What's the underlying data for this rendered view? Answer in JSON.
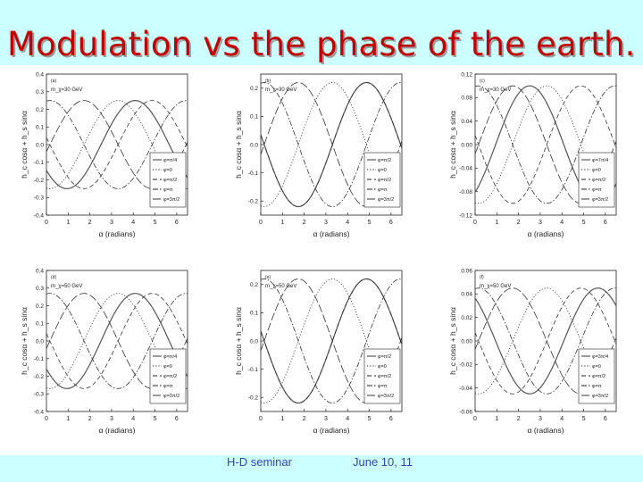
{
  "title": "Modulation vs the phase of the earth.",
  "footer": {
    "seminar": "H-D seminar",
    "date": "June 10, 11"
  },
  "chart_data": [
    {
      "type": "line",
      "panel_tag": "(a)",
      "mass_label": "m_χ=30 GeV",
      "xlabel": "α (radians)",
      "ylabel": "h_c cosα + h_s sinα",
      "xlim": [
        0,
        6.5
      ],
      "xticks": [
        0,
        1,
        2,
        3,
        4,
        5,
        6
      ],
      "ylim": [
        -0.4,
        0.4
      ],
      "yticks": [
        -0.4,
        -0.3,
        -0.2,
        -0.1,
        0.0,
        0.1,
        0.2,
        0.3,
        0.4
      ],
      "amplitude": 0.25,
      "legend_loc": "right",
      "series": [
        {
          "name": "φ=π/4",
          "phase": 0.785,
          "style": "solid"
        },
        {
          "name": "φ=0",
          "phase": 0,
          "style": "dotted"
        },
        {
          "name": "φ=π/2",
          "phase": 1.571,
          "style": "dashed"
        },
        {
          "name": "φ=π",
          "phase": 3.142,
          "style": "dash-dot"
        },
        {
          "name": "φ=3π/2",
          "phase": 4.712,
          "style": "long-dash"
        }
      ]
    },
    {
      "type": "line",
      "panel_tag": "(b)",
      "mass_label": "m_χ=30 GeV",
      "xlabel": "α (radians)",
      "ylabel": "h_c cosα + h_s sinα",
      "xlim": [
        0,
        6.5
      ],
      "xticks": [
        0,
        1,
        2,
        3,
        4,
        5,
        6
      ],
      "ylim": [
        -0.25,
        0.25
      ],
      "yticks": [
        -0.2,
        -0.1,
        0.0,
        0.1,
        0.2
      ],
      "amplitude": 0.22,
      "legend_loc": "right",
      "series": [
        {
          "name": "φ=π/2",
          "phase": 1.571,
          "style": "solid"
        },
        {
          "name": "φ=0",
          "phase": 0,
          "style": "dotted"
        },
        {
          "name": "φ=π/2",
          "phase": 1.571,
          "style": "dashed"
        },
        {
          "name": "φ=π",
          "phase": 3.142,
          "style": "dash-dot"
        },
        {
          "name": "φ=3π/2",
          "phase": 4.712,
          "style": "long-dash"
        }
      ]
    },
    {
      "type": "line",
      "panel_tag": "(c)",
      "mass_label": "m_χ=30 GeV",
      "xlabel": "α (radians)",
      "ylabel": "h_c cosα + h_s sinα",
      "xlim": [
        0,
        6.5
      ],
      "xticks": [
        0,
        1,
        2,
        3,
        4,
        5,
        6
      ],
      "ylim": [
        -0.12,
        0.12
      ],
      "yticks": [
        -0.12,
        -0.08,
        -0.04,
        0.0,
        0.04,
        0.08,
        0.12
      ],
      "amplitude": 0.1,
      "legend_loc": "right",
      "series": [
        {
          "name": "φ=7π/4",
          "phase": 5.498,
          "style": "solid"
        },
        {
          "name": "φ=0",
          "phase": 0,
          "style": "dotted"
        },
        {
          "name": "φ=π/2",
          "phase": 1.571,
          "style": "dashed"
        },
        {
          "name": "φ=π",
          "phase": 3.142,
          "style": "dash-dot"
        },
        {
          "name": "φ=3π/2",
          "phase": 4.712,
          "style": "long-dash"
        }
      ]
    },
    {
      "type": "line",
      "panel_tag": "(d)",
      "mass_label": "m_χ=50 GeV",
      "xlabel": "α (radians)",
      "ylabel": "h_c cosα + h_s sinα",
      "xlim": [
        0,
        6.5
      ],
      "xticks": [
        0,
        1,
        2,
        3,
        4,
        5,
        6
      ],
      "ylim": [
        -0.4,
        0.4
      ],
      "yticks": [
        -0.4,
        -0.3,
        -0.2,
        -0.1,
        0.0,
        0.1,
        0.2,
        0.3,
        0.4
      ],
      "amplitude": 0.27,
      "legend_loc": "right",
      "series": [
        {
          "name": "φ=π/4",
          "phase": 0.785,
          "style": "solid"
        },
        {
          "name": "φ=0",
          "phase": 0,
          "style": "dotted"
        },
        {
          "name": "φ=π/2",
          "phase": 1.571,
          "style": "dashed"
        },
        {
          "name": "φ=π",
          "phase": 3.142,
          "style": "dash-dot"
        },
        {
          "name": "φ=3π/2",
          "phase": 4.712,
          "style": "long-dash"
        }
      ]
    },
    {
      "type": "line",
      "panel_tag": "(e)",
      "mass_label": "m_χ=50 GeV",
      "xlabel": "α (radians)",
      "ylabel": "h_c cosα + h_s sinα",
      "xlim": [
        0,
        6.5
      ],
      "xticks": [
        0,
        1,
        2,
        3,
        4,
        5,
        6
      ],
      "ylim": [
        -0.25,
        0.25
      ],
      "yticks": [
        -0.2,
        -0.1,
        0.0,
        0.1,
        0.2
      ],
      "amplitude": 0.22,
      "legend_loc": "right",
      "series": [
        {
          "name": "φ=π/2",
          "phase": 1.571,
          "style": "solid"
        },
        {
          "name": "φ=0",
          "phase": 0,
          "style": "dotted"
        },
        {
          "name": "φ=π/2",
          "phase": 1.571,
          "style": "dashed"
        },
        {
          "name": "φ=π",
          "phase": 3.142,
          "style": "dash-dot"
        },
        {
          "name": "φ=3π/2",
          "phase": 4.712,
          "style": "long-dash"
        }
      ]
    },
    {
      "type": "line",
      "panel_tag": "(f)",
      "mass_label": "m_χ=50 GeV",
      "xlabel": "α (radians)",
      "ylabel": "h_c cosα + h_s sinα",
      "xlim": [
        0,
        6.5
      ],
      "xticks": [
        0,
        1,
        2,
        3,
        4,
        5,
        6
      ],
      "ylim": [
        -0.06,
        0.06
      ],
      "yticks": [
        -0.06,
        -0.04,
        -0.02,
        0.0,
        0.02,
        0.04,
        0.06
      ],
      "amplitude": 0.045,
      "legend_loc": "right",
      "series": [
        {
          "name": "φ=3π/4",
          "phase": 2.356,
          "style": "solid"
        },
        {
          "name": "φ=0",
          "phase": 0,
          "style": "dotted"
        },
        {
          "name": "φ=π/2",
          "phase": 1.571,
          "style": "dashed"
        },
        {
          "name": "φ=π",
          "phase": 3.142,
          "style": "dash-dot"
        },
        {
          "name": "φ=3π/2",
          "phase": 4.712,
          "style": "long-dash"
        }
      ]
    }
  ]
}
